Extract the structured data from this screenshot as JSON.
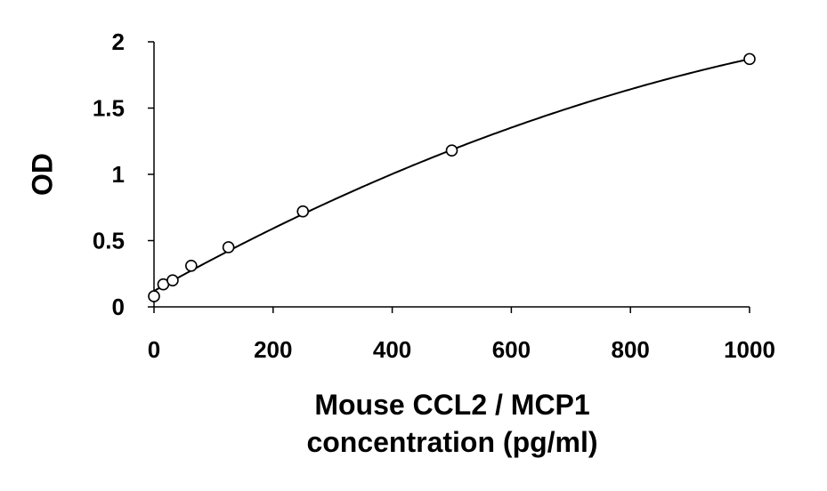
{
  "chart_data": {
    "type": "scatter",
    "title": "",
    "xlabel_lines": [
      "Mouse CCL2 / MCP1",
      "concentration (pg/ml)"
    ],
    "ylabel": "OD",
    "xlim": [
      0,
      1000
    ],
    "ylim": [
      0,
      2
    ],
    "x_ticks": [
      "0",
      "200",
      "400",
      "600",
      "800",
      "1000"
    ],
    "y_ticks": [
      "0",
      "0.5",
      "1",
      "1.5",
      "2"
    ],
    "grid": false,
    "legend": "none",
    "series": [
      {
        "x": [
          0,
          15.6,
          31.3,
          62.5,
          125,
          250,
          500,
          1000
        ],
        "y": [
          0.08,
          0.17,
          0.2,
          0.31,
          0.45,
          0.72,
          1.18,
          1.87
        ],
        "marker": "open-circle"
      }
    ],
    "fit_curve": {
      "type": "quadratic",
      "coefficients": [
        0.12,
        0.00251,
        -7.6e-07
      ],
      "x_range": [
        0,
        1000
      ]
    },
    "colors": {
      "axis": "#000000",
      "marker_stroke": "#000000",
      "curve": "#000000",
      "background": "#ffffff"
    }
  }
}
